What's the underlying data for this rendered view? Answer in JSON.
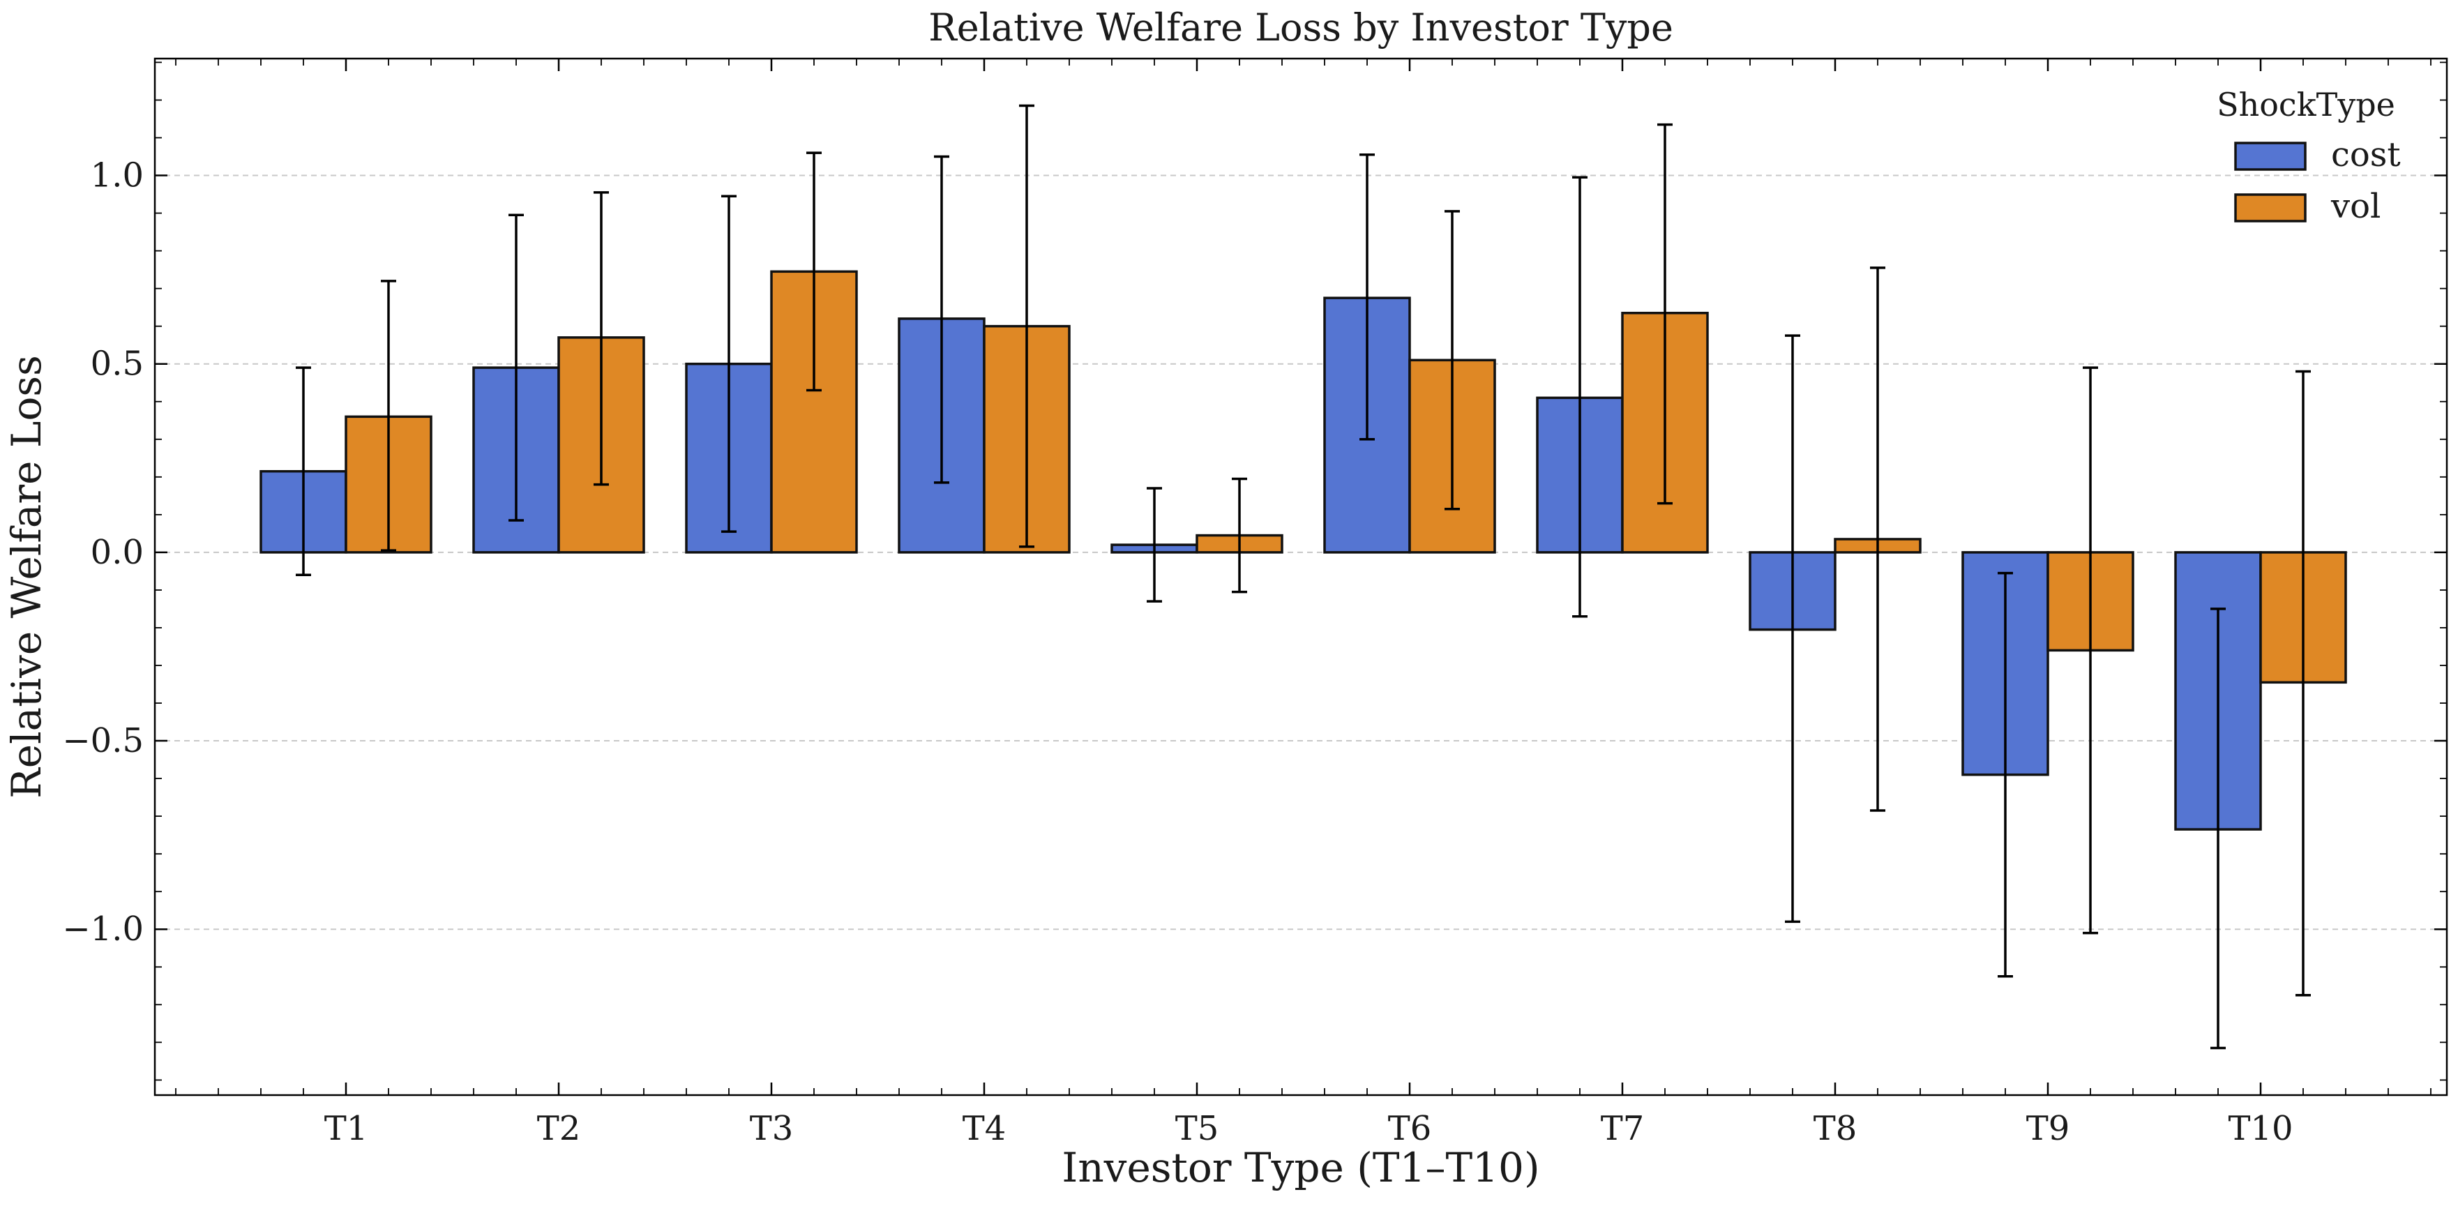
{
  "chart_data": {
    "type": "bar",
    "title": "Relative Welfare Loss by Investor Type",
    "xlabel": "Investor Type (T1–T10)",
    "ylabel": "Relative Welfare Loss",
    "ylim": [
      -1.44,
      1.31
    ],
    "yticks": [
      -1.0,
      -0.5,
      0.0,
      0.5,
      1.0
    ],
    "ytick_labels": [
      "−1.0",
      "−0.5",
      "0.0",
      "0.5",
      "1.0"
    ],
    "grid": "horizontal dashed",
    "categories": [
      "T1",
      "T2",
      "T3",
      "T4",
      "T5",
      "T6",
      "T7",
      "T8",
      "T9",
      "T10"
    ],
    "legend": {
      "title": "ShockType",
      "position": "top-right"
    },
    "series": [
      {
        "name": "cost",
        "color": "#5575d2",
        "values": [
          0.215,
          0.49,
          0.5,
          0.62,
          0.02,
          0.675,
          0.41,
          -0.205,
          -0.59,
          -0.735
        ],
        "err_low": [
          -0.06,
          0.085,
          0.055,
          0.185,
          -0.13,
          0.3,
          -0.17,
          -0.98,
          -1.125,
          -1.315
        ],
        "err_high": [
          0.49,
          0.895,
          0.945,
          1.05,
          0.17,
          1.055,
          0.995,
          0.575,
          -0.055,
          -0.15
        ]
      },
      {
        "name": "vol",
        "color": "#df8825",
        "values": [
          0.36,
          0.57,
          0.745,
          0.6,
          0.045,
          0.51,
          0.635,
          0.035,
          -0.26,
          -0.345
        ],
        "err_low": [
          0.005,
          0.18,
          0.43,
          0.015,
          -0.105,
          0.115,
          0.13,
          -0.685,
          -1.01,
          -1.175
        ],
        "err_high": [
          0.72,
          0.955,
          1.06,
          1.185,
          0.195,
          0.905,
          1.135,
          0.755,
          0.49,
          0.48
        ]
      }
    ]
  }
}
